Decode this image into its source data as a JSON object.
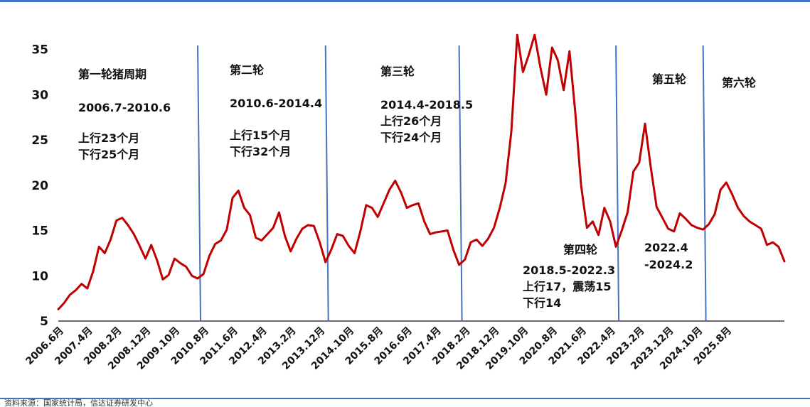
{
  "source_note": "资料来源：国家统计局，信达证券研发中心",
  "colors": {
    "line": "#c00000",
    "divider": "#4472c4",
    "rule": "#4472c4",
    "axis": "#111111"
  },
  "chart_data": {
    "type": "line",
    "title": "",
    "xlabel": "",
    "ylabel": "",
    "ylim": [
      5,
      37
    ],
    "yticks": [
      5,
      10,
      15,
      20,
      25,
      30,
      35
    ],
    "grid": false,
    "x_tick_labels": [
      "2006.6月",
      "2007.4月",
      "2008.2月",
      "2008.12月",
      "2009.10月",
      "2010.8月",
      "2011.6月",
      "2012.4月",
      "2013.2月",
      "2013.12月",
      "2014.10月",
      "2015.8月",
      "2016.6月",
      "2017.4月",
      "2018.2月",
      "2018.12月",
      "2019.10月",
      "2020.8月",
      "2021.6月",
      "2022.4月",
      "2023.2月",
      "2023.12月",
      "2024.10月",
      "2025.8月"
    ],
    "series": [
      {
        "values": [
          [
            0,
            6.3
          ],
          [
            2,
            7.0
          ],
          [
            4,
            7.9
          ],
          [
            6,
            8.4
          ],
          [
            8,
            9.1
          ],
          [
            10,
            8.6
          ],
          [
            12,
            10.5
          ],
          [
            14,
            13.2
          ],
          [
            16,
            12.5
          ],
          [
            18,
            14.0
          ],
          [
            20,
            16.1
          ],
          [
            22,
            16.4
          ],
          [
            24,
            15.6
          ],
          [
            26,
            14.6
          ],
          [
            28,
            13.3
          ],
          [
            30,
            11.9
          ],
          [
            32,
            13.4
          ],
          [
            34,
            11.7
          ],
          [
            36,
            9.6
          ],
          [
            38,
            10.1
          ],
          [
            40,
            11.9
          ],
          [
            42,
            11.4
          ],
          [
            44,
            11.0
          ],
          [
            46,
            10.0
          ],
          [
            48,
            9.7
          ],
          [
            50,
            10.2
          ],
          [
            52,
            12.2
          ],
          [
            54,
            13.5
          ],
          [
            56,
            13.9
          ],
          [
            58,
            15.1
          ],
          [
            60,
            18.6
          ],
          [
            62,
            19.4
          ],
          [
            64,
            17.5
          ],
          [
            66,
            16.7
          ],
          [
            68,
            14.2
          ],
          [
            70,
            13.9
          ],
          [
            72,
            14.6
          ],
          [
            74,
            15.3
          ],
          [
            76,
            17.0
          ],
          [
            78,
            14.4
          ],
          [
            80,
            12.7
          ],
          [
            82,
            14.1
          ],
          [
            84,
            15.2
          ],
          [
            86,
            15.6
          ],
          [
            88,
            15.5
          ],
          [
            90,
            13.7
          ],
          [
            92,
            11.5
          ],
          [
            94,
            12.9
          ],
          [
            96,
            14.6
          ],
          [
            98,
            14.4
          ],
          [
            100,
            13.3
          ],
          [
            102,
            12.5
          ],
          [
            104,
            14.9
          ],
          [
            106,
            17.8
          ],
          [
            108,
            17.5
          ],
          [
            110,
            16.5
          ],
          [
            112,
            18.0
          ],
          [
            114,
            19.5
          ],
          [
            116,
            20.5
          ],
          [
            118,
            19.2
          ],
          [
            120,
            17.5
          ],
          [
            122,
            17.8
          ],
          [
            124,
            18.0
          ],
          [
            126,
            16.0
          ],
          [
            128,
            14.6
          ],
          [
            130,
            14.8
          ],
          [
            132,
            14.9
          ],
          [
            134,
            15.0
          ],
          [
            136,
            12.9
          ],
          [
            138,
            11.2
          ],
          [
            140,
            11.8
          ],
          [
            142,
            13.7
          ],
          [
            144,
            14.0
          ],
          [
            146,
            13.3
          ],
          [
            148,
            14.1
          ],
          [
            150,
            15.3
          ],
          [
            152,
            17.5
          ],
          [
            154,
            20.2
          ],
          [
            156,
            26.0
          ],
          [
            158,
            36.6
          ],
          [
            160,
            32.5
          ],
          [
            162,
            34.4
          ],
          [
            164,
            36.6
          ],
          [
            166,
            33.0
          ],
          [
            168,
            30.0
          ],
          [
            170,
            35.2
          ],
          [
            172,
            33.8
          ],
          [
            174,
            30.5
          ],
          [
            176,
            34.8
          ],
          [
            178,
            28.0
          ],
          [
            180,
            20.0
          ],
          [
            182,
            15.3
          ],
          [
            184,
            16.0
          ],
          [
            186,
            14.5
          ],
          [
            188,
            17.5
          ],
          [
            190,
            16.0
          ],
          [
            192,
            13.2
          ],
          [
            194,
            15.0
          ],
          [
            196,
            17.0
          ],
          [
            198,
            21.5
          ],
          [
            200,
            22.5
          ],
          [
            202,
            26.8
          ],
          [
            204,
            22.0
          ],
          [
            206,
            17.6
          ],
          [
            208,
            16.4
          ],
          [
            210,
            15.2
          ],
          [
            212,
            14.9
          ],
          [
            214,
            16.9
          ],
          [
            216,
            16.3
          ],
          [
            218,
            15.6
          ],
          [
            220,
            15.3
          ],
          [
            222,
            15.1
          ],
          [
            224,
            15.7
          ],
          [
            226,
            16.8
          ],
          [
            228,
            19.5
          ],
          [
            230,
            20.3
          ],
          [
            232,
            19.0
          ],
          [
            234,
            17.5
          ],
          [
            236,
            16.6
          ],
          [
            238,
            16.0
          ],
          [
            240,
            15.6
          ],
          [
            242,
            15.2
          ],
          [
            244,
            13.4
          ],
          [
            246,
            13.7
          ],
          [
            248,
            13.2
          ],
          [
            250,
            11.6
          ]
        ]
      }
    ],
    "dividers": [
      48,
      92,
      138,
      192,
      222
    ],
    "annotations": {
      "c1_title": "第一轮猪周期",
      "c1_range": "2006.7-2010.6",
      "c1_up": "上行23个月",
      "c1_down": "下行25个月",
      "c2_title": "第二轮",
      "c2_range": "2010.6-2014.4",
      "c2_up": "上行15个月",
      "c2_down": "下行32个月",
      "c3_title": "第三轮",
      "c3_range": "2014.4-2018.5",
      "c3_up": "上行26个月",
      "c3_down": "下行24个月",
      "c4_title": "第四轮",
      "c4_range": "2018.5-2022.3",
      "c4_swing": "上行17，震荡15",
      "c4_down": "下行14",
      "c5_title": "第五轮",
      "c5_range_a": "2022.4",
      "c5_range_b": "-2024.2",
      "c6_title": "第六轮"
    }
  }
}
